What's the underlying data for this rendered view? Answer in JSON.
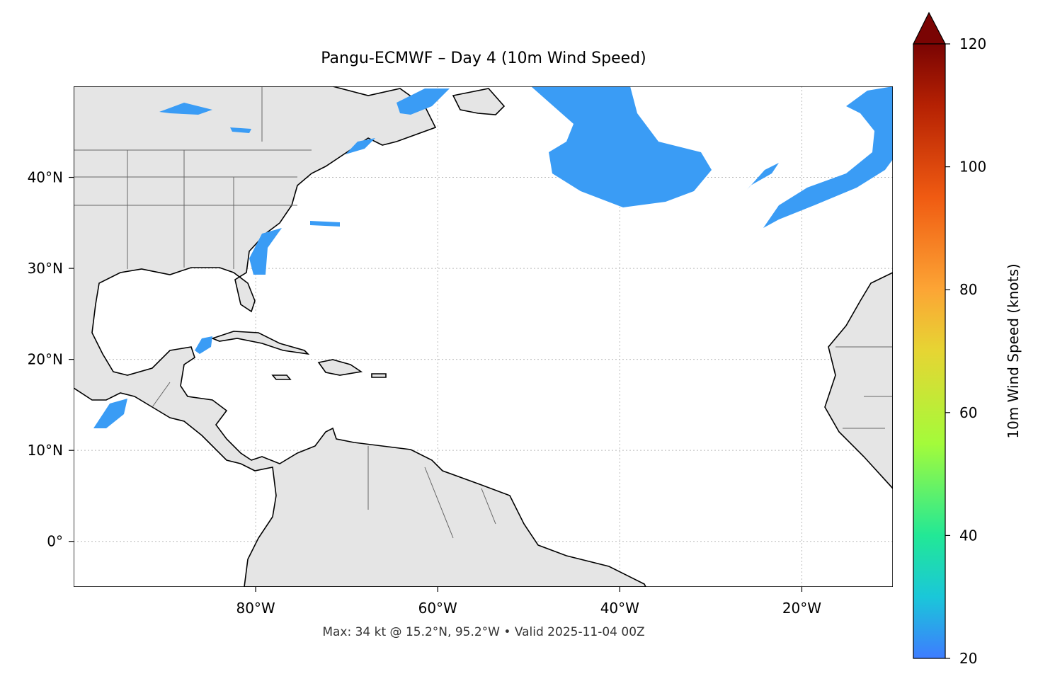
{
  "title": "Pangu-ECMWF – Day 4 (10m Wind Speed)",
  "footer": "Max: 34 kt @ 15.2°N, 95.2°W • Valid 2025-11-04 00Z",
  "map": {
    "xlim": [
      -100,
      -10
    ],
    "ylim": [
      -5,
      50
    ],
    "xticks": [
      {
        "value": -80,
        "label": "80°W"
      },
      {
        "value": -60,
        "label": "60°W"
      },
      {
        "value": -40,
        "label": "40°W"
      },
      {
        "value": -20,
        "label": "20°W"
      }
    ],
    "yticks": [
      {
        "value": 0,
        "label": "0°"
      },
      {
        "value": 10,
        "label": "10°N"
      },
      {
        "value": 20,
        "label": "20°N"
      },
      {
        "value": 30,
        "label": "30°N"
      },
      {
        "value": 40,
        "label": "40°N"
      }
    ],
    "grid": true
  },
  "colorbar": {
    "label": "10m Wind Speed (knots)",
    "lim": [
      20,
      120
    ],
    "ticks": [
      20,
      40,
      60,
      80,
      100,
      120
    ]
  }
}
